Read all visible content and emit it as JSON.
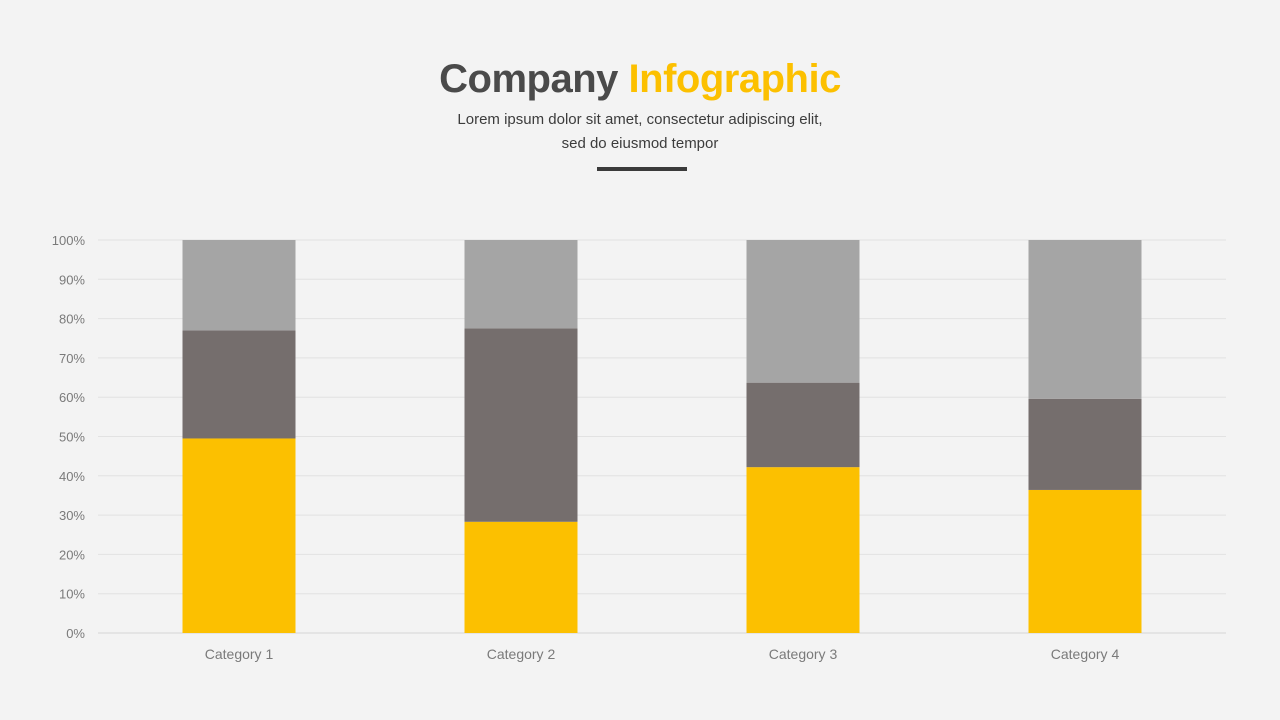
{
  "header": {
    "title_main": "Company",
    "title_accent": "Infographic",
    "subtitle_line1": "Lorem ipsum dolor sit amet, consectetur adipiscing elit,",
    "subtitle_line2": "sed do eiusmod tempor"
  },
  "colors": {
    "accent": "#fcc000",
    "dark": "#403c3c",
    "series": [
      "#fcc000",
      "#756e6d",
      "#a5a5a5"
    ]
  },
  "chart_data": {
    "type": "bar",
    "stacked": true,
    "categories": [
      "Category 1",
      "Category 2",
      "Category 3",
      "Category 4"
    ],
    "series": [
      {
        "values": [
          49.5,
          28.3,
          42.2,
          36.4
        ]
      },
      {
        "values": [
          27.5,
          49.2,
          21.5,
          23.2
        ]
      },
      {
        "values": [
          23.0,
          22.5,
          36.3,
          40.4
        ]
      }
    ],
    "ylim": [
      0,
      100
    ],
    "yticks": [
      "0%",
      "10%",
      "20%",
      "30%",
      "40%",
      "50%",
      "60%",
      "70%",
      "80%",
      "90%",
      "100%"
    ],
    "grid": true,
    "legend": "none"
  }
}
